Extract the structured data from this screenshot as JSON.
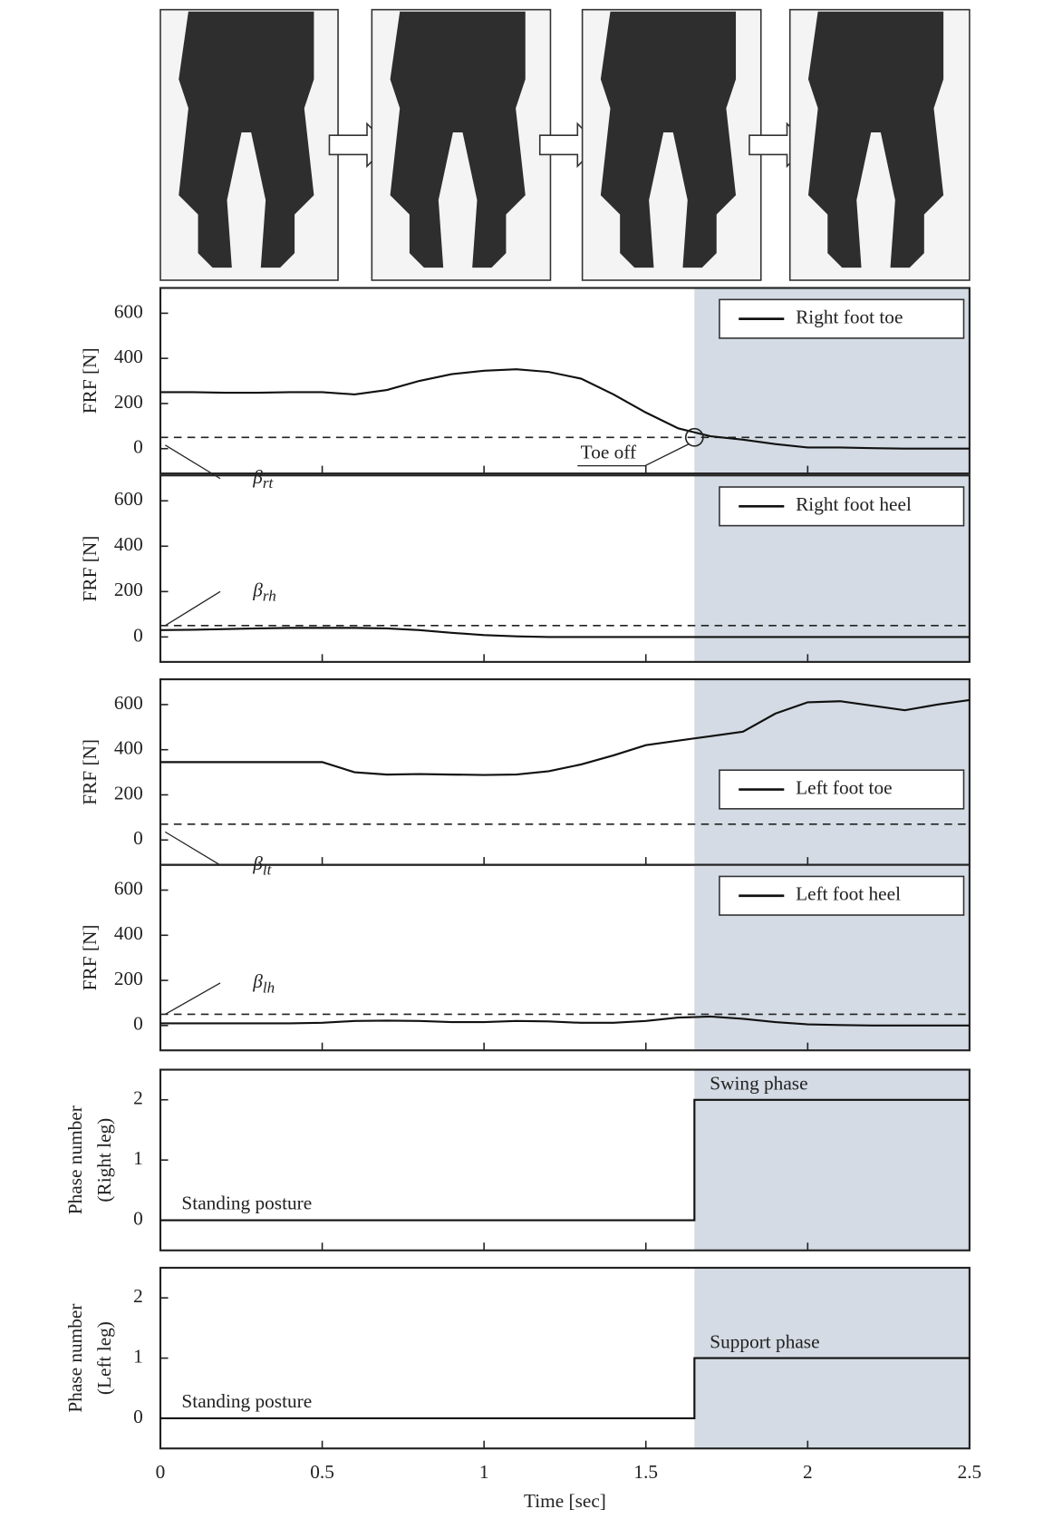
{
  "chart_data": [
    {
      "type": "line",
      "ylabel": [
        "FRF [N]"
      ],
      "x": [
        0,
        0.1,
        0.2,
        0.3,
        0.4,
        0.5,
        0.6,
        0.7,
        0.8,
        0.9,
        1.0,
        1.1,
        1.2,
        1.3,
        1.4,
        1.5,
        1.6,
        1.7,
        1.8,
        1.9,
        2.0,
        2.1,
        2.2,
        2.3,
        2.4,
        2.5
      ],
      "xlim": [
        0,
        2.5
      ],
      "xticks": [
        0,
        0.5,
        1,
        1.5,
        2,
        2.5
      ],
      "ylim": [
        -110,
        712
      ],
      "yticks": [
        0,
        200,
        400,
        600
      ],
      "series": [
        {
          "name": "Right foot toe",
          "color": "#111111",
          "values": [
            250,
            250,
            248,
            248,
            250,
            250,
            240,
            260,
            300,
            330,
            345,
            352,
            340,
            310,
            240,
            160,
            90,
            55,
            40,
            20,
            5,
            5,
            2,
            0,
            0,
            0
          ]
        }
      ],
      "legend": "upper right",
      "threshold": 50,
      "threshold_label": {
        "symbol": "β",
        "subscript": "rt"
      },
      "shade_from": 1.65,
      "shade_color": "#d4dbe4",
      "toe_off": {
        "label": "Toe off",
        "x": 1.65,
        "y": 50
      }
    },
    {
      "type": "line",
      "ylabel": [
        "FRF [N]"
      ],
      "x": [
        0,
        0.1,
        0.2,
        0.3,
        0.4,
        0.5,
        0.6,
        0.7,
        0.8,
        0.9,
        1.0,
        1.1,
        1.2,
        1.3,
        1.4,
        1.5,
        1.6,
        1.7,
        1.8,
        1.9,
        2.0,
        2.1,
        2.2,
        2.3,
        2.4,
        2.5
      ],
      "xlim": [
        0,
        2.5
      ],
      "xticks": [
        0,
        0.5,
        1,
        1.5,
        2,
        2.5
      ],
      "ylim": [
        -110,
        712
      ],
      "yticks": [
        0,
        200,
        400,
        600
      ],
      "series": [
        {
          "name": "Right foot heel",
          "color": "#111111",
          "values": [
            30,
            32,
            35,
            38,
            40,
            40,
            40,
            38,
            30,
            18,
            8,
            3,
            0,
            0,
            0,
            0,
            0,
            0,
            0,
            0,
            0,
            0,
            0,
            0,
            0,
            0
          ]
        }
      ],
      "legend": "upper right",
      "threshold": 50,
      "threshold_label": {
        "symbol": "β",
        "subscript": "rh"
      },
      "shade_from": 1.65,
      "shade_color": "#d4dbe4"
    },
    {
      "type": "line",
      "ylabel": [
        "FRF [N]"
      ],
      "x": [
        0,
        0.1,
        0.2,
        0.3,
        0.4,
        0.5,
        0.6,
        0.7,
        0.8,
        0.9,
        1.0,
        1.1,
        1.2,
        1.3,
        1.4,
        1.5,
        1.6,
        1.7,
        1.8,
        1.9,
        2.0,
        2.1,
        2.2,
        2.3,
        2.4,
        2.5
      ],
      "xlim": [
        0,
        2.5
      ],
      "xticks": [
        0,
        0.5,
        1,
        1.5,
        2,
        2.5
      ],
      "ylim": [
        -110,
        712
      ],
      "yticks": [
        0,
        200,
        400,
        600
      ],
      "series": [
        {
          "name": "Left foot toe",
          "color": "#111111",
          "values": [
            345,
            345,
            345,
            345,
            345,
            345,
            300,
            290,
            292,
            290,
            288,
            290,
            305,
            335,
            375,
            420,
            440,
            460,
            480,
            560,
            610,
            615,
            595,
            575,
            600,
            620
          ]
        }
      ],
      "legend": "center right",
      "threshold": 70,
      "threshold_label": {
        "symbol": "β",
        "subscript": "lt"
      },
      "shade_from": 1.65,
      "shade_color": "#d4dbe4"
    },
    {
      "type": "line",
      "ylabel": [
        "FRF [N]"
      ],
      "x": [
        0,
        0.1,
        0.2,
        0.3,
        0.4,
        0.5,
        0.6,
        0.7,
        0.8,
        0.9,
        1.0,
        1.1,
        1.2,
        1.3,
        1.4,
        1.5,
        1.6,
        1.7,
        1.8,
        1.9,
        2.0,
        2.1,
        2.2,
        2.3,
        2.4,
        2.5
      ],
      "xlim": [
        0,
        2.5
      ],
      "xticks": [
        0,
        0.5,
        1,
        1.5,
        2,
        2.5
      ],
      "ylim": [
        -110,
        712
      ],
      "yticks": [
        0,
        200,
        400,
        600
      ],
      "series": [
        {
          "name": "Left foot heel",
          "color": "#111111",
          "values": [
            10,
            10,
            10,
            10,
            10,
            12,
            20,
            22,
            20,
            15,
            15,
            20,
            18,
            12,
            12,
            20,
            35,
            40,
            30,
            15,
            5,
            2,
            0,
            0,
            0,
            0
          ]
        }
      ],
      "legend": "upper right",
      "threshold": 50,
      "threshold_label": {
        "symbol": "β",
        "subscript": "lh"
      },
      "shade_from": 1.65,
      "shade_color": "#d4dbe4"
    },
    {
      "type": "line",
      "ylabel": [
        "Phase number",
        "(Right leg)"
      ],
      "x": [
        0,
        1.65,
        1.65,
        2.5
      ],
      "xlim": [
        0,
        2.5
      ],
      "xticks": [
        0,
        0.5,
        1,
        1.5,
        2,
        2.5
      ],
      "ylim": [
        -0.5,
        2.5
      ],
      "yticks": [
        0,
        1,
        2
      ],
      "series": [
        {
          "name": "Phase number (Right leg)",
          "color": "#111111",
          "values": [
            0,
            0,
            2,
            2
          ]
        }
      ],
      "annotations": [
        "Standing posture",
        "Swing phase"
      ],
      "shade_from": 1.65,
      "shade_color": "#d4dbe4"
    },
    {
      "type": "line",
      "ylabel": [
        "Phase number",
        "(Left leg)"
      ],
      "x": [
        0,
        1.65,
        1.65,
        2.5
      ],
      "xlim": [
        0,
        2.5
      ],
      "xticks": [
        0,
        0.5,
        1,
        1.5,
        2,
        2.5
      ],
      "ylim": [
        -0.5,
        2.5
      ],
      "yticks": [
        0,
        1,
        2
      ],
      "series": [
        {
          "name": "Phase number (Left leg)",
          "color": "#111111",
          "values": [
            0,
            0,
            1,
            1
          ]
        }
      ],
      "annotations": [
        "Standing posture",
        "Support phase"
      ],
      "xlabel": "Time [sec]",
      "shade_from": 1.65,
      "shade_color": "#d4dbe4"
    }
  ]
}
